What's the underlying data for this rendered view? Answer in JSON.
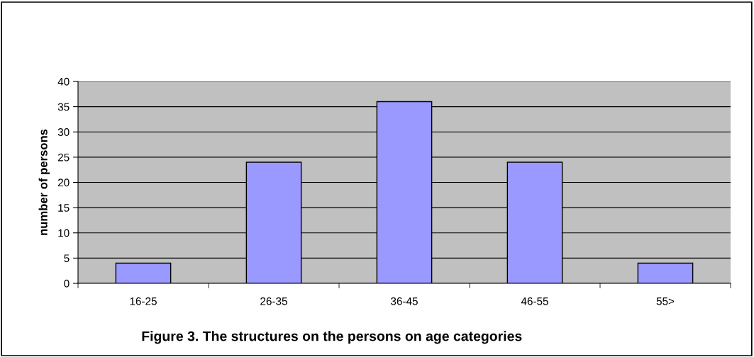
{
  "chart_data": {
    "type": "bar",
    "title": "Figure 3. The structures on the persons on age categories",
    "ylabel": "number of persons",
    "categories": [
      "16-25",
      "26-35",
      "36-45",
      "46-55",
      "55>"
    ],
    "values": [
      4,
      24,
      36,
      24,
      4
    ],
    "color": "#9999ff",
    "ylim": [
      0,
      40
    ],
    "yticks": [
      0,
      5,
      10,
      15,
      20,
      25,
      30,
      35,
      40
    ],
    "grid": "y",
    "legend": false
  }
}
